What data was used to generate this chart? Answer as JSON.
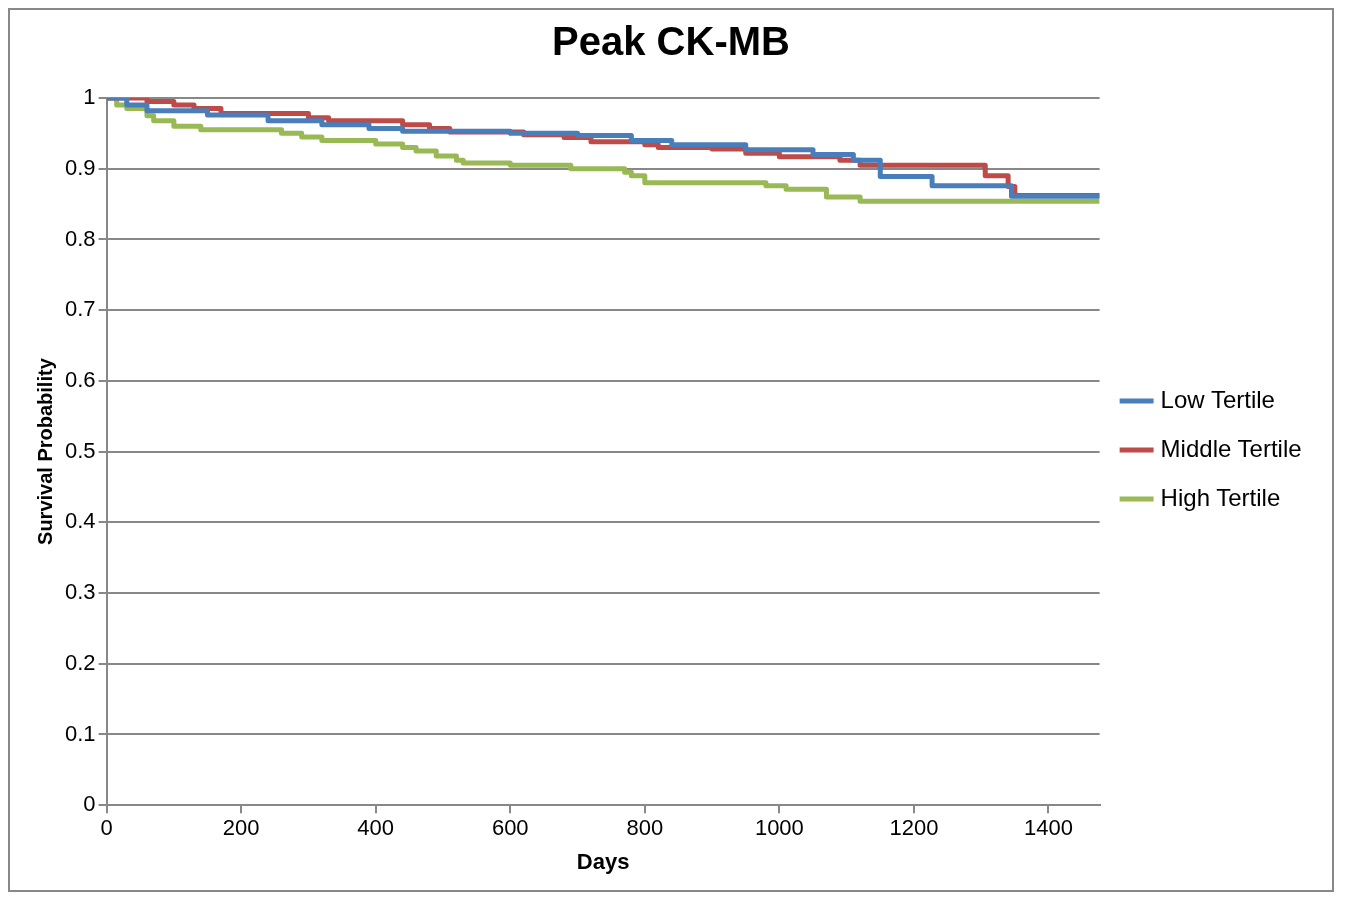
{
  "chart_data": {
    "type": "step",
    "title": "Peak CK-MB",
    "xlabel": "Days",
    "ylabel": "Survival Probability",
    "xlim": [
      0,
      1476
    ],
    "xticks": [
      0,
      200,
      400,
      600,
      800,
      1000,
      1200,
      1400
    ],
    "ylim": [
      0,
      1
    ],
    "yticks": [
      0,
      0.1,
      0.2,
      0.3,
      0.4,
      0.5,
      0.6,
      0.7,
      0.8,
      0.9,
      1
    ],
    "grid": "y",
    "legend": "right",
    "line_style": "solid",
    "marker": "none",
    "series": [
      {
        "name": "Low Tertile",
        "color": "#4a7ebb",
        "x": [
          0,
          30,
          60,
          150,
          240,
          320,
          390,
          440,
          600,
          700,
          780,
          840,
          950,
          1050,
          1110,
          1150,
          1227,
          1345,
          1476
        ],
        "values": [
          1,
          0.99,
          0.982,
          0.976,
          0.968,
          0.962,
          0.957,
          0.953,
          0.95,
          0.947,
          0.94,
          0.934,
          0.927,
          0.92,
          0.912,
          0.889,
          0.876,
          0.861,
          0.861
        ]
      },
      {
        "name": "Middle Tertile",
        "color": "#be4b48",
        "x": [
          0,
          60,
          100,
          130,
          170,
          300,
          330,
          440,
          480,
          510,
          620,
          680,
          720,
          800,
          820,
          900,
          950,
          1000,
          1090,
          1120,
          1306,
          1340,
          1350,
          1476
        ],
        "values": [
          1,
          0.995,
          0.99,
          0.985,
          0.978,
          0.972,
          0.968,
          0.962,
          0.957,
          0.952,
          0.948,
          0.944,
          0.938,
          0.934,
          0.93,
          0.928,
          0.922,
          0.917,
          0.912,
          0.905,
          0.89,
          0.875,
          0.862,
          0.862
        ]
      },
      {
        "name": "High Tertile",
        "color": "#98b954",
        "x": [
          0,
          15,
          30,
          60,
          70,
          100,
          140,
          260,
          290,
          320,
          400,
          440,
          460,
          490,
          520,
          530,
          600,
          690,
          770,
          780,
          800,
          980,
          1010,
          1070,
          1120,
          1476
        ],
        "values": [
          1,
          0.99,
          0.985,
          0.975,
          0.968,
          0.96,
          0.955,
          0.95,
          0.945,
          0.94,
          0.935,
          0.93,
          0.925,
          0.918,
          0.912,
          0.908,
          0.905,
          0.9,
          0.895,
          0.89,
          0.88,
          0.876,
          0.871,
          0.86,
          0.854,
          0.854
        ]
      }
    ]
  }
}
